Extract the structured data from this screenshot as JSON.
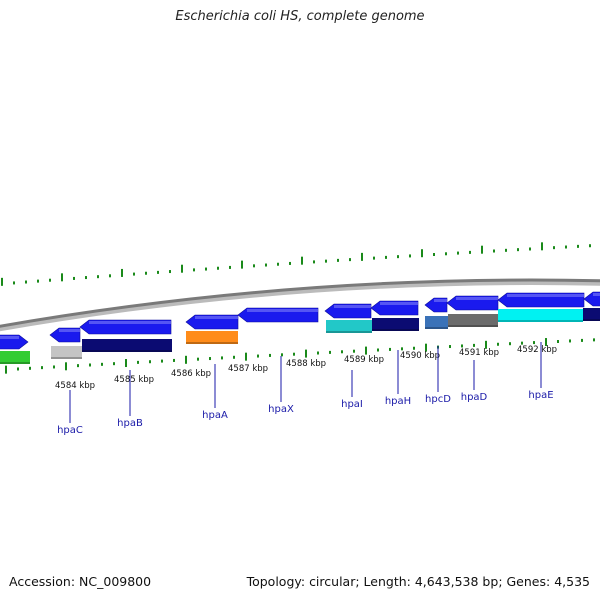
{
  "title": "Escherichia coli HS, complete genome",
  "footer": {
    "accession_label": "Accession:",
    "accession": "NC_009800",
    "topology_label": "Topology:",
    "topology": "circular",
    "length_label": "Length:",
    "length": "4,643,538 bp",
    "genes_label": "Genes:",
    "genes": "4,535"
  },
  "colors": {
    "forward_gene": "#1a1aee",
    "backbone": "#888888",
    "tick": "#1a8a1a",
    "label": "#1a1aa8"
  },
  "scale": {
    "unit": "kbp",
    "labels": [
      "4584 kbp",
      "4585 kbp",
      "4586 kbp",
      "4587 kbp",
      "4588 kbp",
      "4589 kbp",
      "4590 kbp",
      "4591 kbp",
      "4592 kbp"
    ]
  },
  "genes": [
    {
      "name": "hpaC"
    },
    {
      "name": "hpaB"
    },
    {
      "name": "hpaA"
    },
    {
      "name": "hpaX"
    },
    {
      "name": "hpaI"
    },
    {
      "name": "hpaH"
    },
    {
      "name": "hpcD"
    },
    {
      "name": "hpaD"
    },
    {
      "name": "hpaE"
    }
  ]
}
